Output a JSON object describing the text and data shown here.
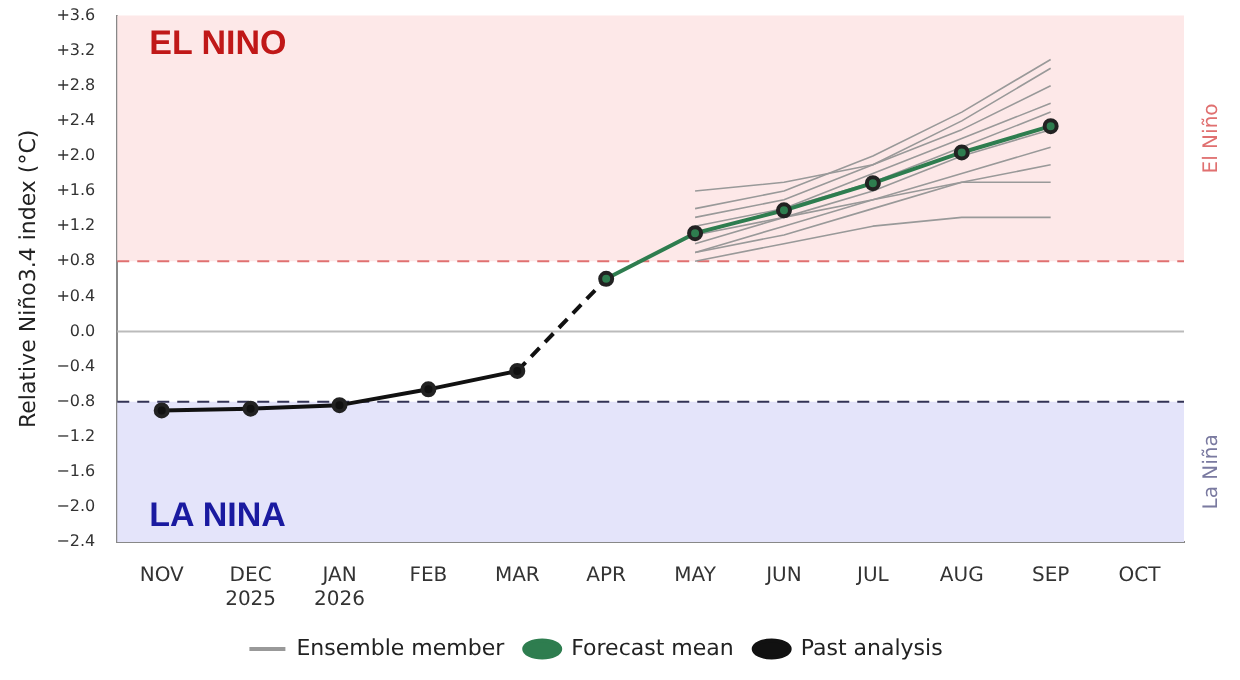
{
  "chart_data": {
    "type": "line",
    "ylabel": "Relative Niño3.4 index (°C)",
    "categories": [
      "NOV",
      "DEC\n2025",
      "JAN\n2026",
      "FEB",
      "MAR",
      "APR",
      "MAY",
      "JUN",
      "JUL",
      "AUG",
      "SEP",
      "OCT"
    ],
    "ylim": [
      -2.4,
      3.6
    ],
    "yticks": [
      {
        "value": 3.6,
        "label": "+3.6"
      },
      {
        "value": 3.2,
        "label": "+3.2"
      },
      {
        "value": 2.8,
        "label": "+2.8"
      },
      {
        "value": 2.4,
        "label": "+2.4"
      },
      {
        "value": 2.0,
        "label": "+2.0"
      },
      {
        "value": 1.6,
        "label": "+1.6"
      },
      {
        "value": 1.2,
        "label": "+1.2"
      },
      {
        "value": 0.8,
        "label": "+0.8"
      },
      {
        "value": 0.4,
        "label": "+0.4"
      },
      {
        "value": 0,
        "label": "0.0"
      },
      {
        "value": -0.4,
        "label": "−0.4"
      },
      {
        "value": -0.8,
        "label": "−0.8"
      },
      {
        "value": -1.2,
        "label": "−1.2"
      },
      {
        "value": -1.6,
        "label": "−1.6"
      },
      {
        "value": -2.0,
        "label": "−2.0"
      },
      {
        "value": -2.4,
        "label": "−2.4"
      }
    ],
    "grid": false,
    "legend": "bottom",
    "bands": [
      {
        "axis": "y",
        "from": 0.8,
        "to": 3.6,
        "label": "El Niño",
        "color": "#fde8e8"
      },
      {
        "axis": "y",
        "from": -2.4,
        "to": -0.8,
        "label": "La Niña",
        "color": "#e4e4fa"
      }
    ],
    "ref_lines": [
      {
        "axis": "y",
        "value": 0.8,
        "color": "#e07070",
        "line_style": "dashed"
      },
      {
        "axis": "y",
        "value": -0.8,
        "color": "#333355",
        "line_style": "dashed"
      },
      {
        "axis": "y",
        "value": 0,
        "color": "#bbbbbb",
        "line_style": "solid"
      }
    ],
    "annotations": [
      "EL NINO",
      "LA NINA"
    ],
    "series": [
      {
        "name": "Ensemble member",
        "color": "#999999",
        "marker": "none",
        "values": [
          null,
          null,
          null,
          null,
          null,
          null,
          1.6,
          1.7,
          1.9,
          2.4,
          3.0,
          null
        ]
      },
      {
        "color": "#999999",
        "marker": "none",
        "values": [
          null,
          null,
          null,
          null,
          null,
          null,
          1.3,
          1.5,
          1.9,
          2.3,
          2.8,
          null
        ]
      },
      {
        "color": "#999999",
        "marker": "none",
        "values": [
          null,
          null,
          null,
          null,
          null,
          null,
          1.2,
          1.4,
          1.8,
          2.2,
          2.6,
          null
        ]
      },
      {
        "color": "#999999",
        "marker": "none",
        "values": [
          null,
          null,
          null,
          null,
          null,
          null,
          1.0,
          1.3,
          1.6,
          2.0,
          2.3,
          null
        ]
      },
      {
        "color": "#999999",
        "marker": "none",
        "values": [
          null,
          null,
          null,
          null,
          null,
          null,
          0.9,
          1.2,
          1.5,
          1.8,
          2.1,
          null
        ]
      },
      {
        "color": "#999999",
        "marker": "none",
        "values": [
          null,
          null,
          null,
          null,
          null,
          null,
          1.1,
          1.3,
          1.5,
          1.7,
          1.9,
          null
        ]
      },
      {
        "color": "#999999",
        "marker": "none",
        "values": [
          null,
          null,
          null,
          null,
          null,
          null,
          0.8,
          1.0,
          1.2,
          1.3,
          1.3,
          null
        ]
      },
      {
        "color": "#999999",
        "marker": "none",
        "values": [
          null,
          null,
          null,
          null,
          null,
          null,
          1.4,
          1.6,
          2.0,
          2.5,
          3.1,
          null
        ]
      },
      {
        "color": "#999999",
        "marker": "none",
        "values": [
          null,
          null,
          null,
          null,
          null,
          null,
          1.1,
          1.4,
          1.7,
          2.1,
          2.5,
          null
        ]
      },
      {
        "color": "#999999",
        "marker": "none",
        "values": [
          null,
          null,
          null,
          null,
          null,
          null,
          0.9,
          1.1,
          1.4,
          1.7,
          1.7,
          null
        ]
      },
      {
        "color": "#111111",
        "line_style": "dashed",
        "values": [
          null,
          null,
          null,
          null,
          -0.45,
          0.6,
          null,
          null,
          null,
          null,
          null,
          null
        ]
      },
      {
        "name": "Past analysis",
        "color": "#111111",
        "marker": "circle",
        "values": [
          -0.9,
          -0.88,
          -0.84,
          -0.66,
          -0.45,
          null,
          null,
          null,
          null,
          null,
          null,
          null
        ]
      },
      {
        "name": "Forecast mean",
        "color": "#2e7d4f",
        "marker": "circle",
        "values": [
          null,
          null,
          null,
          null,
          null,
          0.6,
          1.12,
          1.38,
          1.69,
          2.04,
          2.34,
          null
        ]
      }
    ]
  }
}
